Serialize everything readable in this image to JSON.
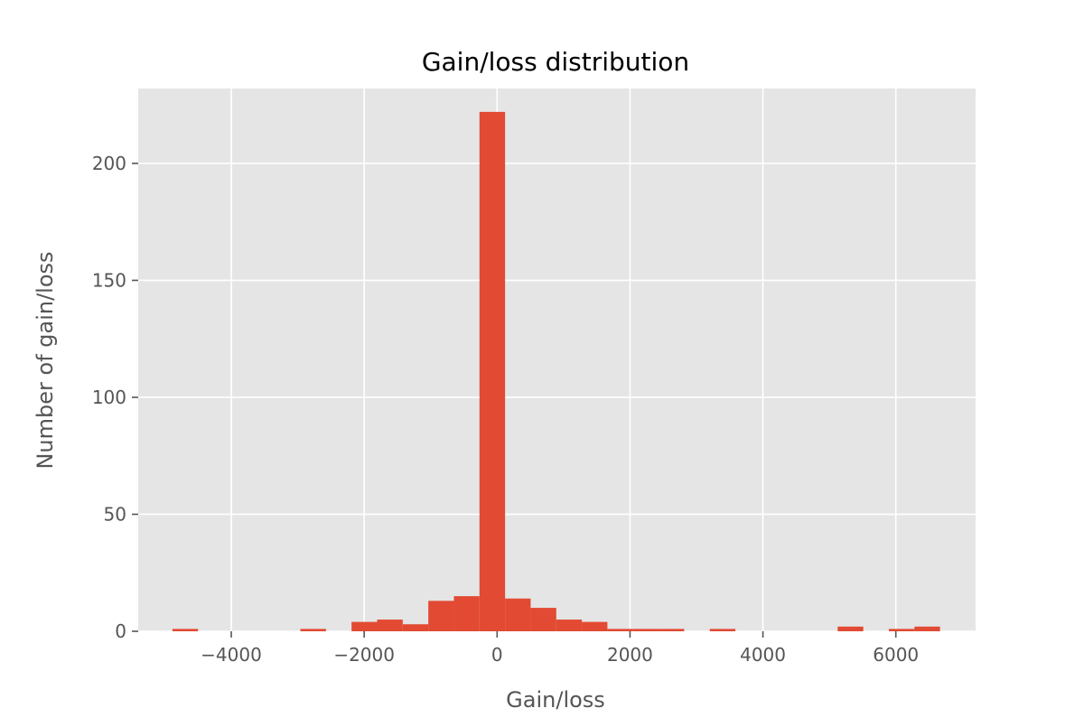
{
  "chart_data": {
    "type": "bar",
    "title": "Gain/loss distribution",
    "xlabel": "Gain/loss",
    "ylabel": "Number of gain/loss",
    "xlim": [
      -5400,
      7200
    ],
    "ylim": [
      0,
      232
    ],
    "grid": true,
    "bar_color": "#E24A33",
    "plot_bg": "#E5E5E5",
    "grid_color": "#FFFFFF",
    "x_ticks": [
      {
        "value": -4000,
        "label": "−4000"
      },
      {
        "value": -2000,
        "label": "−2000"
      },
      {
        "value": 0,
        "label": "0"
      },
      {
        "value": 2000,
        "label": "2000"
      },
      {
        "value": 4000,
        "label": "4000"
      },
      {
        "value": 6000,
        "label": "6000"
      }
    ],
    "y_ticks": [
      {
        "value": 0,
        "label": "0"
      },
      {
        "value": 50,
        "label": "50"
      },
      {
        "value": 100,
        "label": "100"
      },
      {
        "value": 150,
        "label": "150"
      },
      {
        "value": 200,
        "label": "200"
      }
    ],
    "bins": [
      {
        "x0": -4885,
        "x1": -4500,
        "count": 1
      },
      {
        "x0": -4500,
        "x1": -4115,
        "count": 0
      },
      {
        "x0": -4115,
        "x1": -3730,
        "count": 0
      },
      {
        "x0": -3730,
        "x1": -3345,
        "count": 0
      },
      {
        "x0": -3345,
        "x1": -2960,
        "count": 0
      },
      {
        "x0": -2960,
        "x1": -2575,
        "count": 1
      },
      {
        "x0": -2575,
        "x1": -2190,
        "count": 0
      },
      {
        "x0": -2190,
        "x1": -1805,
        "count": 4
      },
      {
        "x0": -1805,
        "x1": -1420,
        "count": 5
      },
      {
        "x0": -1420,
        "x1": -1035,
        "count": 3
      },
      {
        "x0": -1035,
        "x1": -650,
        "count": 13
      },
      {
        "x0": -650,
        "x1": -265,
        "count": 15
      },
      {
        "x0": -265,
        "x1": 120,
        "count": 222
      },
      {
        "x0": 120,
        "x1": 505,
        "count": 14
      },
      {
        "x0": 505,
        "x1": 890,
        "count": 10
      },
      {
        "x0": 890,
        "x1": 1275,
        "count": 5
      },
      {
        "x0": 1275,
        "x1": 1660,
        "count": 4
      },
      {
        "x0": 1660,
        "x1": 2045,
        "count": 1
      },
      {
        "x0": 2045,
        "x1": 2430,
        "count": 1
      },
      {
        "x0": 2430,
        "x1": 2815,
        "count": 1
      },
      {
        "x0": 2815,
        "x1": 3200,
        "count": 0
      },
      {
        "x0": 3200,
        "x1": 3585,
        "count": 1
      },
      {
        "x0": 3585,
        "x1": 3970,
        "count": 0
      },
      {
        "x0": 3970,
        "x1": 4355,
        "count": 0
      },
      {
        "x0": 4355,
        "x1": 4740,
        "count": 0
      },
      {
        "x0": 4740,
        "x1": 5125,
        "count": 0
      },
      {
        "x0": 5125,
        "x1": 5510,
        "count": 2
      },
      {
        "x0": 5510,
        "x1": 5895,
        "count": 0
      },
      {
        "x0": 5895,
        "x1": 6280,
        "count": 1
      },
      {
        "x0": 6280,
        "x1": 6665,
        "count": 2
      }
    ]
  }
}
